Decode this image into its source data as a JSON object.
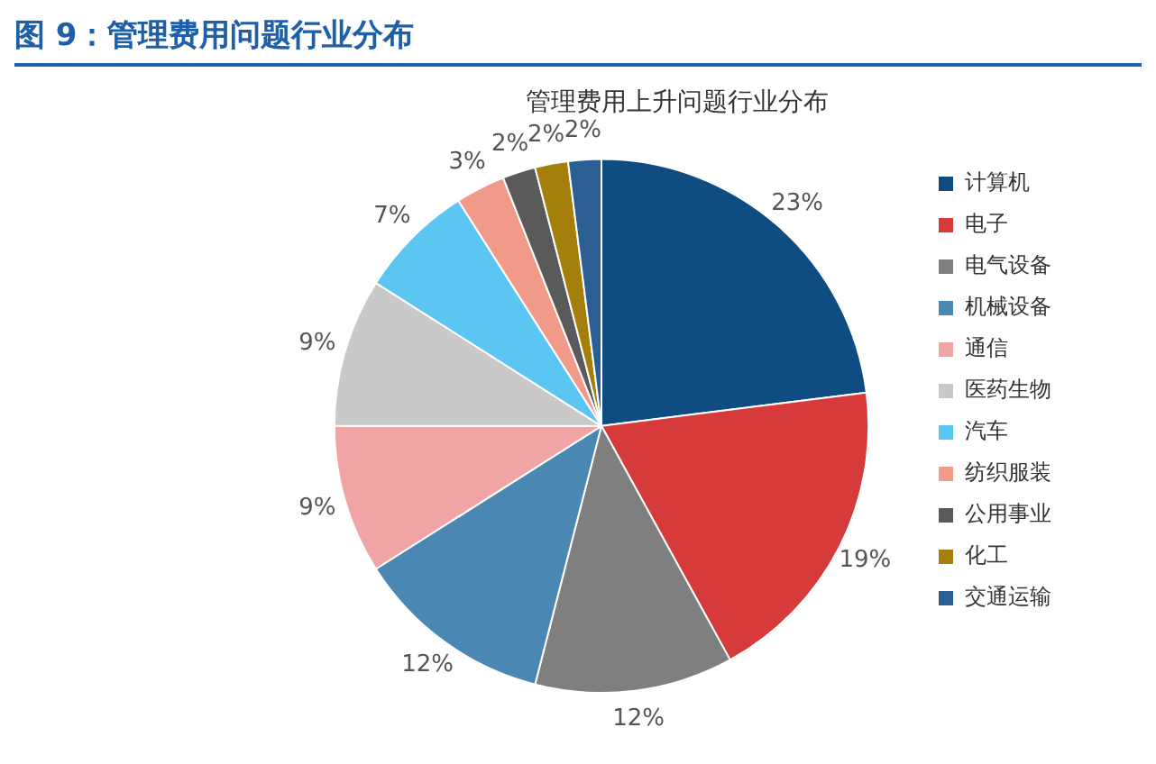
{
  "chart_data": {
    "type": "pie",
    "title": "图 9：管理费用问题行业分布",
    "subtitle": "管理费用上升问题行业分布",
    "categories": [
      "计算机",
      "电子",
      "电气设备",
      "机械设备",
      "通信",
      "医药生物",
      "汽车",
      "纺织服装",
      "公用事业",
      "化工",
      "交通运输"
    ],
    "values": [
      23,
      19,
      12,
      12,
      9,
      9,
      7,
      3,
      2,
      2,
      2
    ],
    "value_labels": [
      "23%",
      "19%",
      "12%",
      "12%",
      "9%",
      "9%",
      "7%",
      "3%",
      "2%",
      "2%",
      "2%"
    ],
    "colors": [
      "#0f4c81",
      "#d63a3a",
      "#7f7f7f",
      "#4a87b3",
      "#f0a4a4",
      "#c9c9c9",
      "#5cc6f2",
      "#f29a8a",
      "#5a5a5a",
      "#a57f0c",
      "#2b5e93"
    ],
    "legend": "right"
  }
}
